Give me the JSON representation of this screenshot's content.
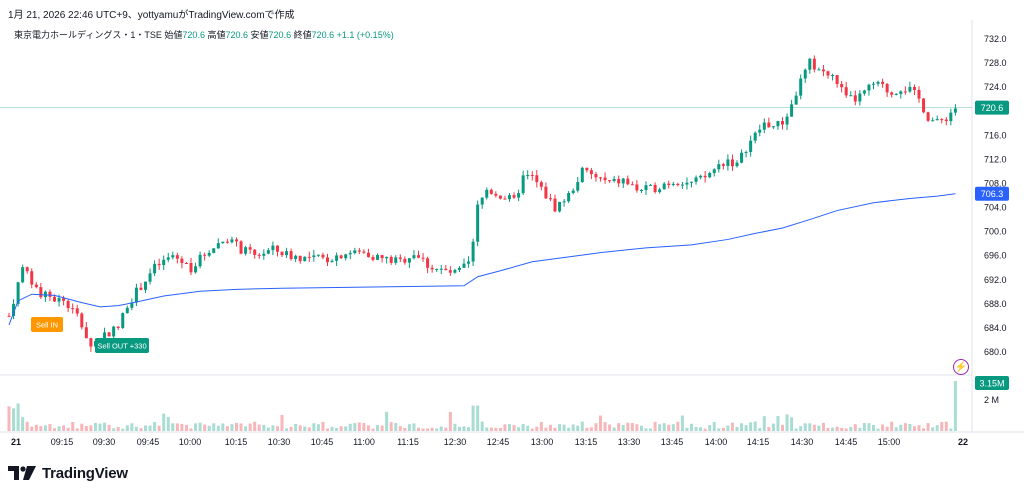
{
  "caption": "1月 21, 2026 22:46 UTC+9、yottyamuがTradingView.comで作成",
  "legend": {
    "symbol": "東京電力ホールディングス・1・TSE",
    "open_label": "始値",
    "open": "720.6",
    "high_label": "高値",
    "high": "720.6",
    "low_label": "安値",
    "low": "720.6",
    "close_label": "終値",
    "close": "720.6",
    "change": "+1.1 (+0.15%)"
  },
  "brand": "TradingView",
  "price_badge": "720.6",
  "vwap_badge": "706.3",
  "volume_badge": "3.15M",
  "volume_tick": "2 M",
  "markers": {
    "sell_in": "Sell IN",
    "sell_out": "Sell OUT +330"
  },
  "colors": {
    "up": "#089981",
    "down": "#f23645",
    "vwap": "#2962ff",
    "sell_in": "#ff9800",
    "sell_out": "#089981"
  },
  "chart_data": {
    "type": "candlestick",
    "y_ticks": [
      "732.0",
      "728.0",
      "724.0",
      "720.0",
      "716.0",
      "712.0",
      "708.0",
      "704.0",
      "700.0",
      "696.0",
      "692.0",
      "688.0",
      "684.0",
      "680.0"
    ],
    "x_ticks": [
      "21",
      "09:15",
      "09:30",
      "09:45",
      "10:00",
      "10:15",
      "10:30",
      "10:45",
      "11:00",
      "11:15",
      "12:30",
      "12:45",
      "13:00",
      "13:15",
      "13:30",
      "13:45",
      "14:00",
      "14:15",
      "14:30",
      "14:45",
      "15:00",
      "22"
    ],
    "ylim": [
      678,
      734
    ],
    "close_path": [
      {
        "t": 0,
        "p": 686
      },
      {
        "t": 3,
        "p": 694
      },
      {
        "t": 6,
        "p": 690
      },
      {
        "t": 9,
        "p": 689
      },
      {
        "t": 12,
        "p": 688.5
      },
      {
        "t": 15,
        "p": 686
      },
      {
        "t": 18,
        "p": 681
      },
      {
        "t": 21,
        "p": 683
      },
      {
        "t": 24,
        "p": 684
      },
      {
        "t": 26,
        "p": 688
      },
      {
        "t": 29,
        "p": 691
      },
      {
        "t": 32,
        "p": 694
      },
      {
        "t": 36,
        "p": 696
      },
      {
        "t": 40,
        "p": 694
      },
      {
        "t": 44,
        "p": 697
      },
      {
        "t": 48,
        "p": 699
      },
      {
        "t": 51,
        "p": 697
      },
      {
        "t": 54,
        "p": 696
      },
      {
        "t": 58,
        "p": 697
      },
      {
        "t": 62,
        "p": 696
      },
      {
        "t": 66,
        "p": 695.5
      },
      {
        "t": 70,
        "p": 695.5
      },
      {
        "t": 74,
        "p": 696.5
      },
      {
        "t": 78,
        "p": 696.5
      },
      {
        "t": 82,
        "p": 695.5
      },
      {
        "t": 86,
        "p": 695
      },
      {
        "t": 89,
        "p": 696.5
      },
      {
        "t": 92,
        "p": 694.5
      },
      {
        "t": 95,
        "p": 693.5
      },
      {
        "t": 98,
        "p": 693
      },
      {
        "t": 101,
        "p": 694.5
      },
      {
        "t": 102,
        "p": 698
      },
      {
        "t": 103,
        "p": 704
      },
      {
        "t": 105,
        "p": 707
      },
      {
        "t": 108,
        "p": 706
      },
      {
        "t": 111,
        "p": 705
      },
      {
        "t": 113,
        "p": 709
      },
      {
        "t": 115,
        "p": 709
      },
      {
        "t": 117,
        "p": 707
      },
      {
        "t": 120,
        "p": 704
      },
      {
        "t": 123,
        "p": 706
      },
      {
        "t": 126,
        "p": 710
      },
      {
        "t": 129,
        "p": 709
      },
      {
        "t": 132,
        "p": 708
      },
      {
        "t": 135,
        "p": 708.5
      },
      {
        "t": 138,
        "p": 707
      },
      {
        "t": 141,
        "p": 707
      },
      {
        "t": 144,
        "p": 708
      },
      {
        "t": 147,
        "p": 708.5
      },
      {
        "t": 150,
        "p": 708
      },
      {
        "t": 153,
        "p": 709
      },
      {
        "t": 156,
        "p": 711
      },
      {
        "t": 158,
        "p": 712
      },
      {
        "t": 160,
        "p": 711
      },
      {
        "t": 162,
        "p": 714
      },
      {
        "t": 164,
        "p": 716
      },
      {
        "t": 166,
        "p": 718
      },
      {
        "t": 168,
        "p": 717.5
      },
      {
        "t": 170,
        "p": 718
      },
      {
        "t": 172,
        "p": 721
      },
      {
        "t": 174,
        "p": 725
      },
      {
        "t": 176,
        "p": 728
      },
      {
        "t": 178,
        "p": 727
      },
      {
        "t": 180,
        "p": 726
      },
      {
        "t": 182,
        "p": 725
      },
      {
        "t": 184,
        "p": 722
      },
      {
        "t": 186,
        "p": 722
      },
      {
        "t": 188,
        "p": 723
      },
      {
        "t": 190,
        "p": 724.5
      },
      {
        "t": 192,
        "p": 724
      },
      {
        "t": 194,
        "p": 723
      },
      {
        "t": 196,
        "p": 724
      },
      {
        "t": 198,
        "p": 723.5
      },
      {
        "t": 200,
        "p": 722
      },
      {
        "t": 202,
        "p": 719
      },
      {
        "t": 204,
        "p": 718
      },
      {
        "t": 206,
        "p": 719
      },
      {
        "t": 208,
        "p": 720.6
      }
    ],
    "vwap_path": [
      {
        "t": 0,
        "p": 684.5
      },
      {
        "t": 2,
        "p": 688.5
      },
      {
        "t": 5,
        "p": 689.6
      },
      {
        "t": 10,
        "p": 689.4
      },
      {
        "t": 16,
        "p": 688.2
      },
      {
        "t": 20,
        "p": 687.5
      },
      {
        "t": 24,
        "p": 687.7
      },
      {
        "t": 28,
        "p": 688.3
      },
      {
        "t": 34,
        "p": 689.3
      },
      {
        "t": 42,
        "p": 690.1
      },
      {
        "t": 50,
        "p": 690.4
      },
      {
        "t": 60,
        "p": 690.6
      },
      {
        "t": 70,
        "p": 690.7
      },
      {
        "t": 80,
        "p": 690.8
      },
      {
        "t": 90,
        "p": 690.9
      },
      {
        "t": 100,
        "p": 691.0
      },
      {
        "t": 103,
        "p": 692.5
      },
      {
        "t": 108,
        "p": 693.5
      },
      {
        "t": 115,
        "p": 695.0
      },
      {
        "t": 122,
        "p": 695.7
      },
      {
        "t": 130,
        "p": 696.5
      },
      {
        "t": 140,
        "p": 697.3
      },
      {
        "t": 150,
        "p": 697.8
      },
      {
        "t": 158,
        "p": 698.7
      },
      {
        "t": 164,
        "p": 699.7
      },
      {
        "t": 170,
        "p": 700.6
      },
      {
        "t": 176,
        "p": 702.0
      },
      {
        "t": 182,
        "p": 703.5
      },
      {
        "t": 190,
        "p": 704.8
      },
      {
        "t": 198,
        "p": 705.5
      },
      {
        "t": 204,
        "p": 705.9
      },
      {
        "t": 208,
        "p": 706.3
      }
    ],
    "volume_scale_max": 3.15,
    "volume_ticks": [
      "2 M"
    ],
    "sell_in_price": 684.5,
    "sell_out_price": 681
  }
}
